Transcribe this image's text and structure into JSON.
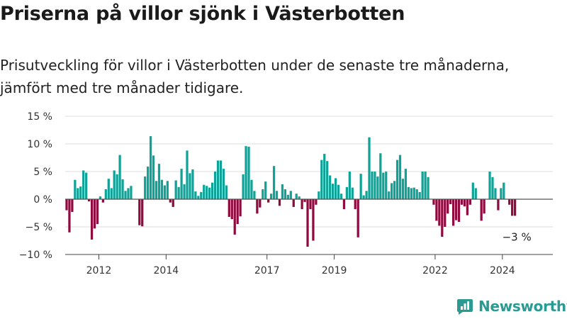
{
  "header": {
    "title": "Priserna på villor sjönk i Västerbotten",
    "subtitle": "Prisutveckling för villor i Västerbotten under de senaste tre månaderna, jämfört med tre månader tidigare."
  },
  "brand": {
    "name": "Newsworthy",
    "logo_icon": "bar-chart-badge-icon"
  },
  "colors": {
    "positive": "#0fa398",
    "negative": "#8f0a3e",
    "brand": "#2b9a93"
  },
  "chart_data": {
    "type": "bar",
    "title": "",
    "xlabel": "",
    "ylabel": "",
    "ylim": [
      -10,
      15
    ],
    "yticks": [
      -10,
      -5,
      0,
      5,
      10,
      15
    ],
    "ytick_labels": [
      "−10 %",
      "−5 %",
      "0 %",
      "5 %",
      "10 %",
      "15 %"
    ],
    "x_start": "2011-01",
    "xticks": [
      "2012",
      "2014",
      "2017",
      "2019",
      "2022",
      "2024"
    ],
    "x_index_range": [
      0,
      174
    ],
    "xtick_index": [
      12,
      36,
      72,
      96,
      132,
      156
    ],
    "end_label": "−3 %",
    "grid": true,
    "legend": "none",
    "values": [
      -2.0,
      -6.0,
      -2.3,
      3.5,
      2.0,
      2.3,
      5.2,
      4.8,
      -0.4,
      -7.3,
      -5.3,
      -4.5,
      0.5,
      -0.6,
      1.8,
      3.7,
      2.0,
      5.2,
      4.5,
      8.0,
      3.6,
      1.5,
      2.0,
      2.4,
      0.0,
      0.0,
      -4.7,
      -4.9,
      4.1,
      5.9,
      11.4,
      7.9,
      3.3,
      6.4,
      3.5,
      2.5,
      3.3,
      -0.6,
      -1.4,
      3.4,
      2.2,
      5.5,
      2.7,
      8.8,
      4.7,
      5.4,
      1.4,
      0.6,
      1.3,
      2.6,
      2.4,
      2.1,
      3.0,
      5.0,
      7.0,
      7.0,
      5.5,
      2.5,
      -3.2,
      -3.6,
      -6.4,
      -4.5,
      -3.1,
      4.5,
      9.6,
      9.5,
      3.5,
      1.5,
      -2.6,
      -1.5,
      1.8,
      3.2,
      -0.6,
      1.0,
      6.0,
      1.5,
      -1.2,
      2.7,
      1.8,
      0.8,
      1.5,
      -1.4,
      1.0,
      0.5,
      -1.8,
      -0.5,
      -8.6,
      -1.8,
      -7.5,
      -1.0,
      1.4,
      7.1,
      8.2,
      6.9,
      4.3,
      2.8,
      3.8,
      2.6,
      1.0,
      -1.8,
      2.2,
      5.0,
      2.1,
      -1.8,
      -6.9,
      4.6,
      0.7,
      1.5,
      11.2,
      5.0,
      5.0,
      4.1,
      8.3,
      4.8,
      5.0,
      1.4,
      2.9,
      3.3,
      7.1,
      8.0,
      3.7,
      5.5,
      2.2,
      2.0,
      2.1,
      1.8,
      1.3,
      5.0,
      5.0,
      4.0,
      0.0,
      -1.0,
      -3.9,
      -4.8,
      -6.8,
      -5.0,
      -2.6,
      -0.9,
      -4.8,
      -3.8,
      -4.1,
      -1.0,
      -1.3,
      -2.9,
      -1.0,
      3.0,
      2.0,
      0.0,
      -3.9,
      -2.6,
      0.0,
      5.0,
      4.0,
      2.0,
      -2.0,
      2.0,
      3.0,
      0.0,
      -1.0,
      -3.0,
      -3.0
    ]
  }
}
